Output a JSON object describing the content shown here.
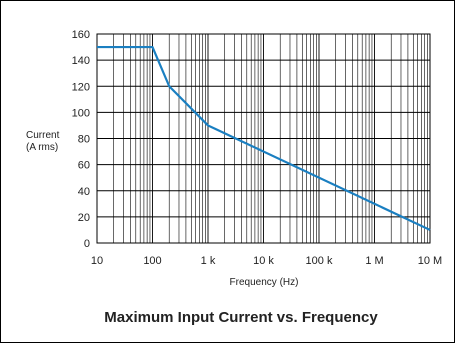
{
  "chart_data": {
    "type": "line",
    "title": "Maximum Input Current vs. Frequency",
    "xlabel": "Frequency (Hz)",
    "ylabel_lines": [
      "Current",
      "(A rms)"
    ],
    "x_scale": "log",
    "xlim": [
      10,
      10000000
    ],
    "ylim": [
      0,
      160
    ],
    "grid": true,
    "x_ticks": [
      {
        "value": 10,
        "label": "10"
      },
      {
        "value": 100,
        "label": "100"
      },
      {
        "value": 1000,
        "label": "1 k"
      },
      {
        "value": 10000,
        "label": "10 k"
      },
      {
        "value": 100000,
        "label": "100 k"
      },
      {
        "value": 1000000,
        "label": "1 M"
      },
      {
        "value": 10000000,
        "label": "10 M"
      }
    ],
    "y_ticks": [
      0,
      20,
      40,
      60,
      80,
      100,
      120,
      140,
      160
    ],
    "series": [
      {
        "color": "#1a7fc1",
        "x": [
          10,
          100,
          200,
          1000,
          10000000
        ],
        "y": [
          150,
          150,
          120,
          90,
          10
        ]
      }
    ]
  }
}
